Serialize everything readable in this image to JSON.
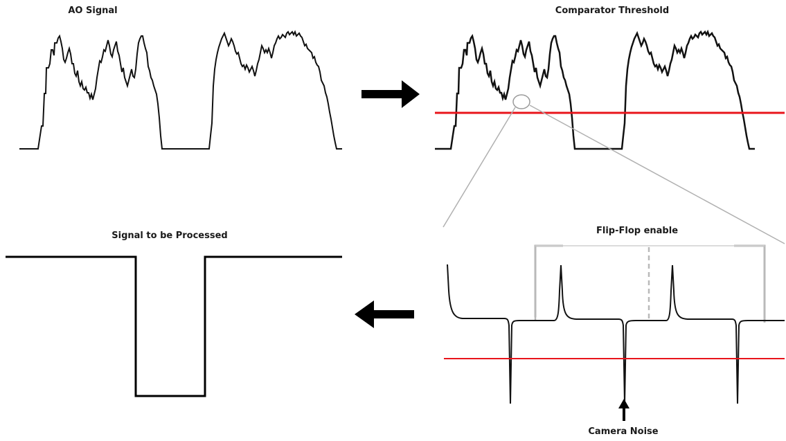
{
  "labels": {
    "ao_signal": "AO Signal",
    "comparator_threshold": "Comparator Threshold",
    "signal_to_be_processed": "Signal to be Processed",
    "flip_flop_enable": "Flip-Flop enable",
    "camera_noise": "Camera Noise"
  },
  "colors": {
    "threshold_line": "#e8141b",
    "signal_line": "#111111",
    "enable_bracket": "#bbbbbb",
    "zoom_lines": "#aaaaaa"
  },
  "icons": [
    "arrow-right-icon",
    "arrow-left-icon",
    "arrow-up-icon"
  ]
}
